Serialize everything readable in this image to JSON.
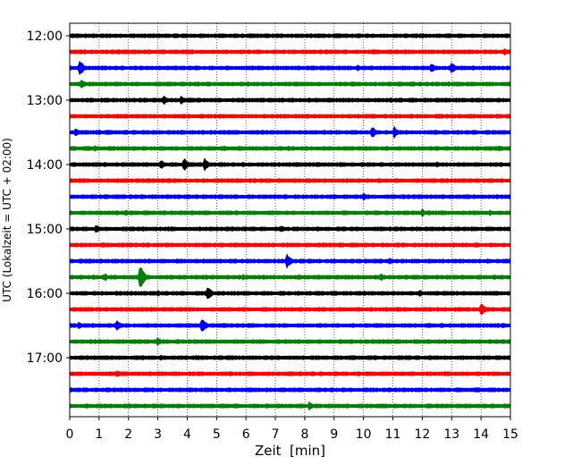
{
  "chart_data": {
    "type": "line",
    "title": "",
    "xlabel": "Zeit  [min]",
    "ylabel": "UTC (Lokalzeit = UTC + 02:00)",
    "xlim": [
      0,
      15
    ],
    "x_ticks": [
      0,
      1,
      2,
      3,
      4,
      5,
      6,
      7,
      8,
      9,
      10,
      11,
      12,
      13,
      14,
      15
    ],
    "y_tick_labels": [
      "12:00",
      "13:00",
      "14:00",
      "15:00",
      "16:00",
      "17:00"
    ],
    "y_tick_trace_index": [
      0,
      4,
      8,
      12,
      16,
      20
    ],
    "grid": "vertical dotted lines at each minute",
    "trace_interval_min": 15,
    "trace_start": "12:00",
    "color_cycle": [
      "#000000",
      "#ff0000",
      "#0000ff",
      "#008000"
    ],
    "series": [
      {
        "start": "12:00",
        "color": "#000000",
        "events": [
          [
            4.95,
            3
          ],
          [
            10.7,
            3
          ]
        ]
      },
      {
        "start": "12:15",
        "color": "#ff0000",
        "events": [
          [
            2.0,
            3
          ],
          [
            14.8,
            5
          ]
        ]
      },
      {
        "start": "12:30",
        "color": "#0000ff",
        "events": [
          [
            0.35,
            10
          ],
          [
            6.2,
            3
          ],
          [
            9.8,
            4
          ],
          [
            12.3,
            7
          ],
          [
            13.0,
            7
          ]
        ]
      },
      {
        "start": "12:45",
        "color": "#008000",
        "events": [
          [
            0.4,
            6
          ],
          [
            3.0,
            3
          ],
          [
            9.2,
            3
          ],
          [
            12.9,
            3
          ]
        ]
      },
      {
        "start": "13:00",
        "color": "#000000",
        "events": [
          [
            1.1,
            3
          ],
          [
            3.2,
            6
          ],
          [
            3.8,
            6
          ],
          [
            6.6,
            3
          ]
        ]
      },
      {
        "start": "13:15",
        "color": "#ff0000",
        "events": [
          [
            3.5,
            2
          ],
          [
            7.5,
            2
          ]
        ]
      },
      {
        "start": "13:30",
        "color": "#0000ff",
        "events": [
          [
            0.2,
            5
          ],
          [
            1.0,
            4
          ],
          [
            2.2,
            3
          ],
          [
            10.3,
            8
          ],
          [
            11.05,
            8
          ]
        ]
      },
      {
        "start": "13:45",
        "color": "#008000",
        "events": [
          [
            0.85,
            5
          ],
          [
            9.0,
            3
          ],
          [
            14.6,
            4
          ]
        ]
      },
      {
        "start": "14:00",
        "color": "#000000",
        "events": [
          [
            3.1,
            6
          ],
          [
            3.9,
            9
          ],
          [
            4.6,
            8
          ],
          [
            12.5,
            4
          ],
          [
            14.4,
            3
          ]
        ]
      },
      {
        "start": "14:15",
        "color": "#ff0000",
        "events": [
          [
            1.7,
            2
          ],
          [
            4.3,
            2
          ]
        ]
      },
      {
        "start": "14:30",
        "color": "#0000ff",
        "events": [
          [
            1.6,
            3
          ],
          [
            4.0,
            3
          ],
          [
            9.0,
            3
          ],
          [
            10.0,
            5
          ],
          [
            14.7,
            3
          ]
        ]
      },
      {
        "start": "14:45",
        "color": "#008000",
        "events": [
          [
            1.9,
            4
          ],
          [
            12.0,
            5
          ],
          [
            14.3,
            4
          ]
        ]
      },
      {
        "start": "15:00",
        "color": "#000000",
        "events": [
          [
            0.9,
            6
          ],
          [
            7.2,
            5
          ],
          [
            4.9,
            2
          ]
        ]
      },
      {
        "start": "15:15",
        "color": "#ff0000",
        "events": [
          [
            7.4,
            3
          ],
          [
            12.5,
            3
          ],
          [
            14.1,
            2
          ]
        ]
      },
      {
        "start": "15:30",
        "color": "#0000ff",
        "events": [
          [
            0.35,
            3
          ],
          [
            7.4,
            9
          ],
          [
            9.0,
            4
          ],
          [
            10.9,
            5
          ],
          [
            14.2,
            3
          ]
        ]
      },
      {
        "start": "15:45",
        "color": "#008000",
        "events": [
          [
            1.2,
            5
          ],
          [
            2.4,
            16
          ],
          [
            5.9,
            4
          ],
          [
            10.6,
            5
          ],
          [
            13.5,
            3
          ]
        ]
      },
      {
        "start": "16:00",
        "color": "#000000",
        "events": [
          [
            3.0,
            4
          ],
          [
            4.7,
            10
          ],
          [
            11.9,
            5
          ]
        ]
      },
      {
        "start": "16:15",
        "color": "#ff0000",
        "events": [
          [
            4.05,
            3
          ],
          [
            12.3,
            2
          ],
          [
            14.0,
            9
          ]
        ]
      },
      {
        "start": "16:30",
        "color": "#0000ff",
        "events": [
          [
            0.3,
            5
          ],
          [
            1.6,
            7
          ],
          [
            4.5,
            10
          ]
        ]
      },
      {
        "start": "16:45",
        "color": "#008000",
        "events": [
          [
            3.0,
            6
          ],
          [
            6.3,
            2
          ]
        ]
      },
      {
        "start": "17:00",
        "color": "#000000",
        "events": [
          [
            3.1,
            4
          ],
          [
            7.6,
            3
          ]
        ]
      },
      {
        "start": "17:15",
        "color": "#ff0000",
        "events": [
          [
            1.6,
            5
          ],
          [
            3.6,
            3
          ],
          [
            9.8,
            2
          ]
        ]
      },
      {
        "start": "17:30",
        "color": "#0000ff",
        "events": [
          [
            4.1,
            2
          ],
          [
            10.8,
            2
          ]
        ]
      },
      {
        "start": "17:45",
        "color": "#008000",
        "events": [
          [
            6.7,
            4
          ],
          [
            8.15,
            6
          ]
        ]
      }
    ]
  }
}
